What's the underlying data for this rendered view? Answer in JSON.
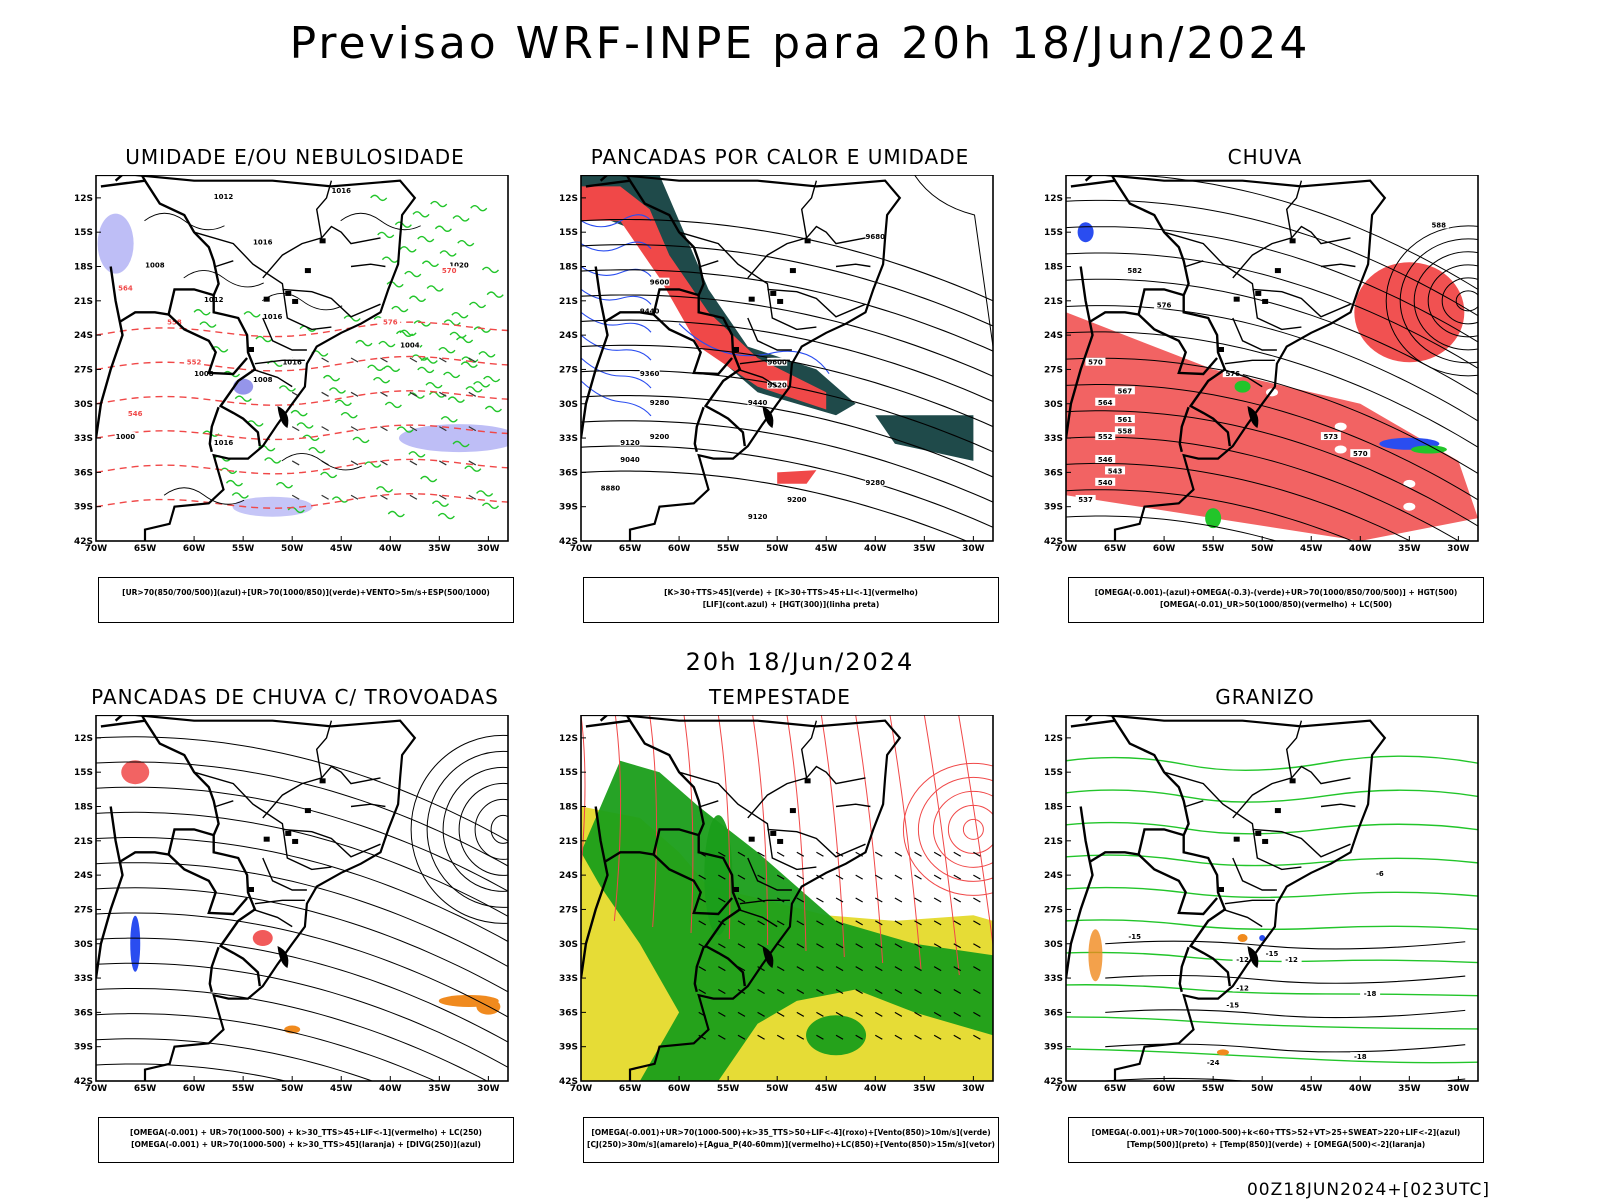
{
  "header": {
    "title": "Previsao WRF-INPE  para 20h 18/Jun/2024",
    "mid_date": "20h 18/Jun/2024",
    "footer": "00Z18JUN2024+[023UTC]"
  },
  "axes": {
    "lat_ticks": [
      "12S",
      "15S",
      "18S",
      "21S",
      "24S",
      "27S",
      "30S",
      "33S",
      "36S",
      "39S",
      "42S"
    ],
    "lon_ticks": [
      "70W",
      "65W",
      "60W",
      "55W",
      "50W",
      "45W",
      "40W",
      "35W",
      "30W"
    ]
  },
  "colors": {
    "black": "#000000",
    "green": "#22c52a",
    "red": "#f04848",
    "blue": "#2a4df0",
    "lavender": "#b7b7f5",
    "darkteal": "#1f4a4a",
    "yellow": "#e6dc36",
    "orange": "#f08a1e",
    "darkgreen": "#1a9e1a"
  },
  "panels": [
    {
      "title": "UMIDADE E/OU NEBULOSIDADE",
      "legend": [
        "[UR>70(850/700/500)](azul)+[UR>70(1000/850)](verde)+VENTO>5m/s+ESP(500/1000)"
      ],
      "labels": [
        "1012",
        "1016",
        "1008",
        "1016",
        "1012",
        "1016",
        "1020",
        "1008",
        "1016",
        "1004",
        "576",
        "570",
        "564",
        "558",
        "552",
        "546",
        "1000",
        "1008",
        "1016"
      ]
    },
    {
      "title": "PANCADAS POR CALOR E UMIDADE",
      "legend": [
        "[K>30+TTS>45](verde) + [K>30+TTS>45+LI<-1](vermelho)",
        "[LIF](cont.azul) + [HGT(300)](linha preta)"
      ],
      "labels": [
        "9680",
        "9600",
        "9440",
        "9360",
        "9280",
        "9200",
        "9120",
        "9040",
        "8880",
        "9440",
        "9520",
        "9600",
        "9200",
        "9280",
        "9120"
      ]
    },
    {
      "title": "CHUVA",
      "legend": [
        "[OMEGA(-0.001)-(azul)+OMEGA(-0.3)-(verde)+UR>70(1000/850/700/500)] + HGT(500)",
        "[OMEGA(-0.01)_UR>50(1000/850)(vermelho) + LC(500)"
      ],
      "labels": [
        "588",
        "582",
        "576",
        "570",
        "567",
        "564",
        "561",
        "558",
        "552",
        "546",
        "543",
        "540",
        "537",
        "576",
        "573",
        "570"
      ]
    },
    {
      "title": "PANCADAS DE CHUVA C/ TROVOADAS",
      "legend": [
        "[OMEGA(-0.001) + UR>70(1000-500) + k>30_TTS>45+LIF<-1](vermelho) + LC(250)",
        "[OMEGA(-0.001) + UR>70(1000-500) + k>30_TTS>45](laranja) + [DIVG(250)](azul)"
      ],
      "labels": []
    },
    {
      "title": "TEMPESTADE",
      "legend": [
        "[OMEGA(-0.001)+UR>70(1000-500)+k>35_TTS>50+LIF<-4](roxo)+[Vento(850)>10m/s](verde)",
        "[CJ(250)>30m/s](amarelo)+[Agua_P(40-60mm)](vermelho)+LC(850)+[Vento(850)>15m/s](vetor)"
      ],
      "labels": []
    },
    {
      "title": "GRANIZO",
      "legend": [
        "[OMEGA(-0.001)+UR>70(1000-500)+k<60+TTS>52+VT>25+SWEAT>220+LIF<-2](azul)",
        "[Temp(500)](preto) + [Temp(850)](verde) + [OMEGA(500)<-2](laranja)"
      ],
      "labels": [
        "-6",
        "-15",
        "-12",
        "-12",
        "-15",
        "-18",
        "-24",
        "-18",
        "-12",
        "-15"
      ]
    }
  ],
  "chart_data": [
    {
      "type": "heatmap",
      "title": "UMIDADE E/OU NEBULOSIDADE",
      "lon_range": [
        -70,
        -28
      ],
      "lat_range": [
        -42,
        -10
      ],
      "contour_values": [
        1004,
        1008,
        1012,
        1016,
        1020
      ],
      "thickness_values": [
        546,
        552,
        558,
        564,
        570,
        576
      ]
    },
    {
      "type": "heatmap",
      "title": "PANCADAS POR CALOR E UMIDADE",
      "lon_range": [
        -70,
        -28
      ],
      "lat_range": [
        -42,
        -10
      ],
      "contour_values": [
        8880,
        9040,
        9120,
        9200,
        9280,
        9360,
        9440,
        9520,
        9600,
        9680
      ]
    },
    {
      "type": "heatmap",
      "title": "CHUVA",
      "lon_range": [
        -70,
        -28
      ],
      "lat_range": [
        -42,
        -10
      ],
      "contour_values": [
        537,
        540,
        543,
        546,
        552,
        558,
        561,
        564,
        567,
        570,
        573,
        576,
        582,
        588
      ]
    },
    {
      "type": "heatmap",
      "title": "PANCADAS DE CHUVA C/ TROVOADAS",
      "lon_range": [
        -70,
        -28
      ],
      "lat_range": [
        -42,
        -10
      ]
    },
    {
      "type": "heatmap",
      "title": "TEMPESTADE",
      "lon_range": [
        -70,
        -28
      ],
      "lat_range": [
        -42,
        -10
      ]
    },
    {
      "type": "heatmap",
      "title": "GRANIZO",
      "lon_range": [
        -70,
        -28
      ],
      "lat_range": [
        -42,
        -10
      ],
      "contour_values": [
        -24,
        -18,
        -15,
        -12,
        -6
      ]
    }
  ]
}
